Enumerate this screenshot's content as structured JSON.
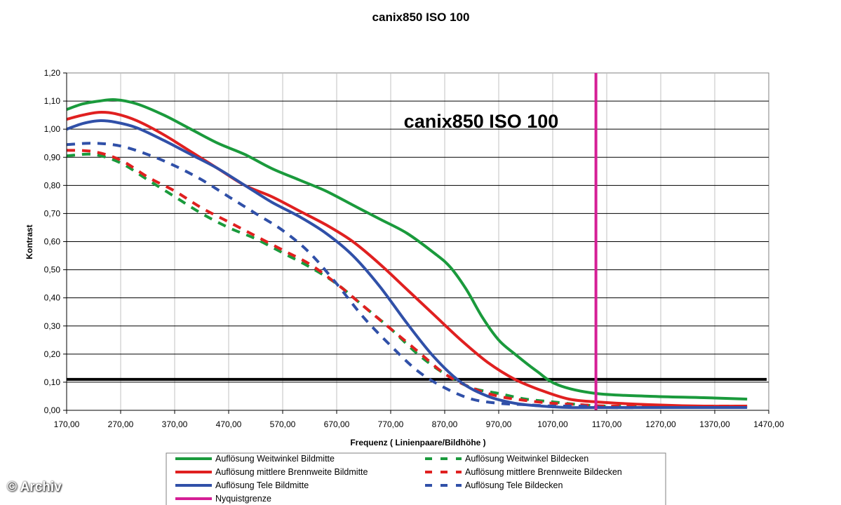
{
  "chart_data": {
    "type": "line",
    "title": "canix850 ISO 100",
    "annotation": "canix850 ISO 100",
    "xlabel": "Frequenz ( Linienpaare/Bildhöhe )",
    "ylabel": "Kontrast",
    "xlim": [
      170,
      1470
    ],
    "ylim": [
      0,
      1.2
    ],
    "x_ticks": [
      "170,00",
      "270,00",
      "370,00",
      "470,00",
      "570,00",
      "670,00",
      "770,00",
      "870,00",
      "970,00",
      "1070,00",
      "1170,00",
      "1270,00",
      "1370,00",
      "1470,00"
    ],
    "y_ticks": [
      "0,00",
      "0,10",
      "0,20",
      "0,30",
      "0,40",
      "0,50",
      "0,60",
      "0,70",
      "0,80",
      "0,90",
      "1,00",
      "1,10",
      "1,20"
    ],
    "grid": true,
    "legend_position": "bottom",
    "series": [
      {
        "name": "Auflösung Weitwinkel Bildmitte",
        "color": "#1a9a3c",
        "dash": false,
        "x": [
          170,
          200,
          230,
          260,
          300,
          350,
          400,
          450,
          500,
          550,
          600,
          650,
          700,
          750,
          800,
          850,
          880,
          910,
          940,
          970,
          1000,
          1040,
          1080,
          1150,
          1250,
          1350,
          1430
        ],
        "y": [
          1.07,
          1.09,
          1.1,
          1.105,
          1.09,
          1.05,
          1.0,
          0.95,
          0.91,
          0.86,
          0.82,
          0.78,
          0.73,
          0.68,
          0.63,
          0.56,
          0.51,
          0.43,
          0.33,
          0.25,
          0.2,
          0.14,
          0.09,
          0.06,
          0.05,
          0.045,
          0.04
        ]
      },
      {
        "name": "Auflösung mittlere Brennweite Bildmitte",
        "color": "#e02020",
        "dash": false,
        "x": [
          170,
          200,
          230,
          260,
          300,
          350,
          400,
          450,
          500,
          550,
          600,
          650,
          700,
          750,
          800,
          850,
          900,
          950,
          1000,
          1050,
          1100,
          1150,
          1250,
          1350,
          1430
        ],
        "y": [
          1.035,
          1.05,
          1.06,
          1.055,
          1.03,
          0.98,
          0.92,
          0.86,
          0.8,
          0.76,
          0.71,
          0.66,
          0.6,
          0.52,
          0.43,
          0.34,
          0.25,
          0.17,
          0.11,
          0.07,
          0.04,
          0.03,
          0.02,
          0.015,
          0.015
        ]
      },
      {
        "name": "Auflösung Tele Bildmitte",
        "color": "#3050a8",
        "dash": false,
        "x": [
          170,
          200,
          230,
          260,
          300,
          350,
          400,
          450,
          500,
          550,
          600,
          650,
          700,
          750,
          800,
          850,
          900,
          950,
          1000,
          1050,
          1100,
          1150,
          1250,
          1350,
          1430
        ],
        "y": [
          1.0,
          1.02,
          1.03,
          1.025,
          1.005,
          0.96,
          0.91,
          0.86,
          0.8,
          0.74,
          0.69,
          0.63,
          0.55,
          0.44,
          0.31,
          0.19,
          0.1,
          0.05,
          0.025,
          0.015,
          0.01,
          0.01,
          0.01,
          0.01,
          0.01
        ]
      },
      {
        "name": "Nyquistgrenze",
        "color": "#d51f95",
        "dash": false,
        "x": [
          1150,
          1150
        ],
        "y": [
          0,
          1.2
        ]
      },
      {
        "name": "Auflösung Weitwinkel Bildecken",
        "color": "#1a9a3c",
        "dash": true,
        "x": [
          170,
          220,
          270,
          320,
          370,
          420,
          470,
          520,
          570,
          620,
          670,
          720,
          770,
          820,
          870,
          920,
          970,
          1020,
          1070,
          1120,
          1170,
          1250,
          1350,
          1430
        ],
        "y": [
          0.905,
          0.91,
          0.88,
          0.82,
          0.76,
          0.7,
          0.65,
          0.61,
          0.56,
          0.51,
          0.45,
          0.37,
          0.29,
          0.2,
          0.13,
          0.08,
          0.06,
          0.04,
          0.03,
          0.02,
          0.015,
          0.015,
          0.015,
          0.015
        ]
      },
      {
        "name": "Auflösung mittlere Brennweite Bildecken",
        "color": "#e02020",
        "dash": true,
        "x": [
          170,
          220,
          270,
          320,
          370,
          420,
          470,
          520,
          570,
          620,
          670,
          720,
          770,
          820,
          870,
          920,
          970,
          1020,
          1070,
          1120,
          1170,
          1250,
          1350,
          1430
        ],
        "y": [
          0.925,
          0.92,
          0.89,
          0.83,
          0.78,
          0.72,
          0.67,
          0.62,
          0.57,
          0.52,
          0.45,
          0.37,
          0.29,
          0.21,
          0.13,
          0.08,
          0.05,
          0.035,
          0.025,
          0.02,
          0.015,
          0.015,
          0.015,
          0.015
        ]
      },
      {
        "name": "Auflösung Tele Bildecken",
        "color": "#3050a8",
        "dash": true,
        "x": [
          170,
          220,
          270,
          320,
          370,
          420,
          470,
          520,
          570,
          620,
          670,
          720,
          770,
          820,
          870,
          920,
          970,
          1020,
          1070,
          1120,
          1170,
          1250,
          1350,
          1430
        ],
        "y": [
          0.945,
          0.95,
          0.94,
          0.91,
          0.87,
          0.82,
          0.76,
          0.7,
          0.64,
          0.56,
          0.45,
          0.33,
          0.23,
          0.14,
          0.08,
          0.04,
          0.025,
          0.02,
          0.015,
          0.015,
          0.01,
          0.01,
          0.01,
          0.01
        ]
      }
    ],
    "threshold": {
      "y": 0.11,
      "color": "#000000"
    }
  },
  "watermark": "© Archiv"
}
